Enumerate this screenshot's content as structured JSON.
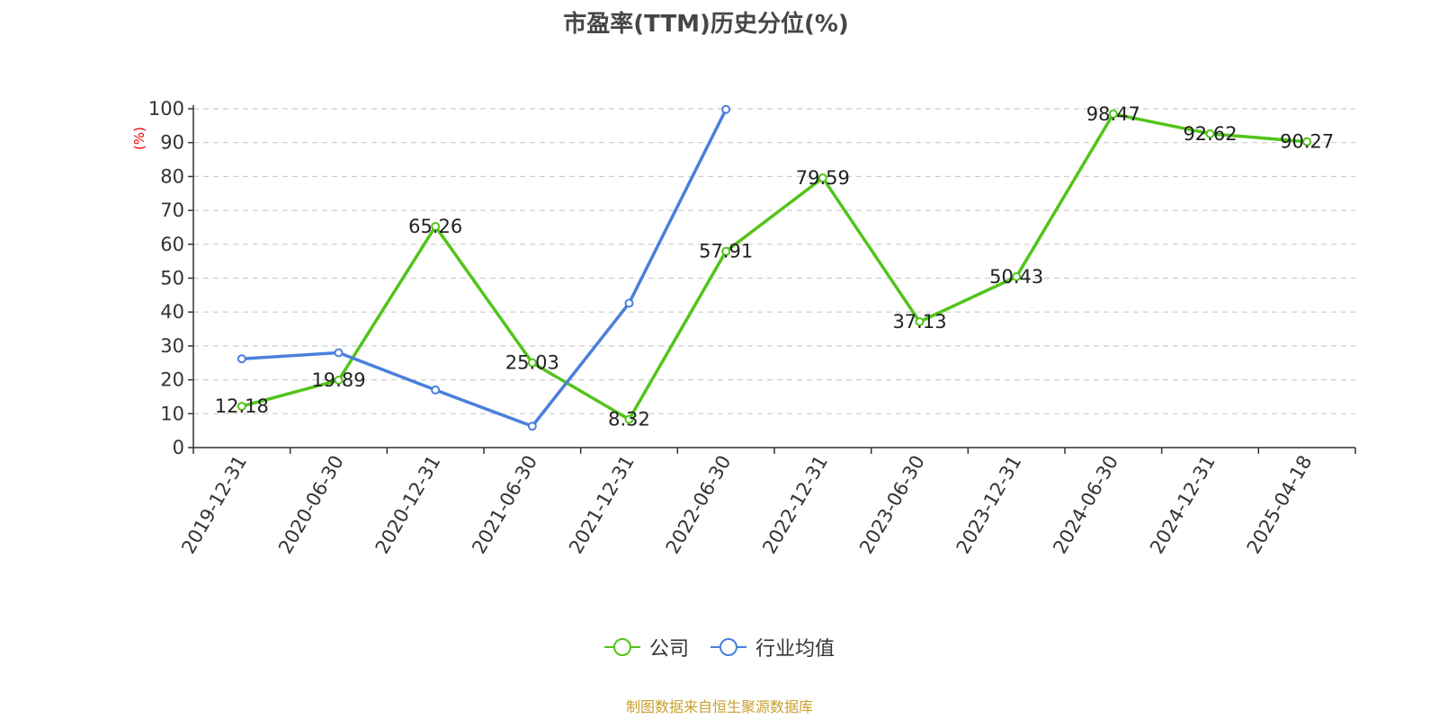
{
  "colors": {
    "company": "#52c41a",
    "industry": "#4a7fdc",
    "axis": "#333333",
    "grid": "#cccccc",
    "ylabel": "#ee0000",
    "source": "#c8a030"
  },
  "source_note": "制图数据来自恒生聚源数据库",
  "chart_data": {
    "type": "line",
    "title": "市盈率(TTM)历史分位(%)",
    "xlabel": "",
    "ylabel": "(%)",
    "ylim": [
      0,
      100
    ],
    "yticks": [
      0,
      10,
      20,
      30,
      40,
      50,
      60,
      70,
      80,
      90,
      100
    ],
    "grid": true,
    "legend": "bottom-center",
    "categories": [
      "2019-12-31",
      "2020-06-30",
      "2020-12-31",
      "2021-06-30",
      "2021-12-31",
      "2022-06-30",
      "2022-12-31",
      "2023-06-30",
      "2023-12-31",
      "2024-06-30",
      "2024-12-31",
      "2025-04-18"
    ],
    "series": [
      {
        "name": "公司",
        "color": "#52c41a",
        "show_labels": true,
        "values": [
          12.18,
          19.89,
          65.26,
          25.03,
          8.32,
          57.91,
          79.59,
          37.13,
          50.43,
          98.47,
          92.62,
          90.27
        ],
        "labels": [
          "12.18",
          "19.89",
          "65.26",
          "25.03",
          "8.32",
          "57.91",
          "79.59",
          "37.13",
          "50.43",
          "98.47",
          "92.62",
          "90.27"
        ]
      },
      {
        "name": "行业均值",
        "color": "#4a7fdc",
        "show_labels": false,
        "values": [
          26.2,
          28.0,
          17.0,
          6.3,
          42.6,
          99.8,
          null,
          null,
          null,
          null,
          null,
          null
        ]
      }
    ]
  }
}
